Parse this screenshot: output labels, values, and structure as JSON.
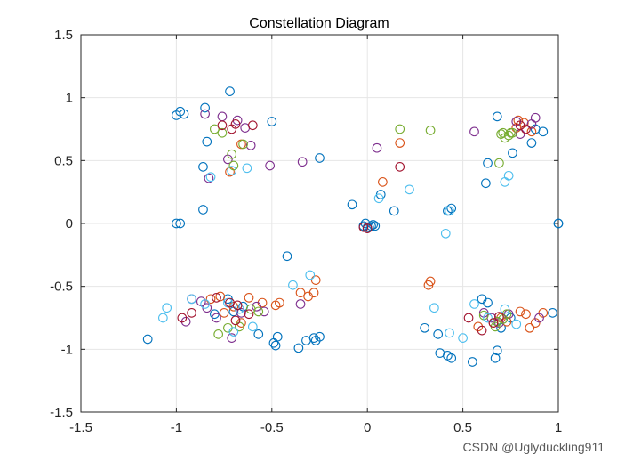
{
  "watermark": "CSDN @Uglyduckling911",
  "chart_data": {
    "type": "scatter",
    "title": "Constellation Diagram",
    "xlabel": "",
    "ylabel": "",
    "xlim": [
      -1.5,
      1
    ],
    "ylim": [
      -1.5,
      1.5
    ],
    "xticks": [
      -1.5,
      -1,
      -0.5,
      0,
      0.5,
      1
    ],
    "xtick_labels": [
      "-1.5",
      "-1",
      "-0.5",
      "0",
      "0.5",
      "1"
    ],
    "yticks": [
      -1.5,
      -1,
      -0.5,
      0,
      0.5,
      1,
      1.5
    ],
    "ytick_labels": [
      "-1.5",
      "-1",
      "-0.5",
      "0",
      "0.5",
      "1",
      "1.5"
    ],
    "grid": true,
    "marker": "open-circle",
    "series": [
      {
        "color": "#0072BD",
        "points": [
          [
            -0.98,
            0.0
          ],
          [
            -1.0,
            0.0
          ],
          [
            1.0,
            0.0
          ],
          [
            1.0,
            0.0
          ],
          [
            -1.0,
            0.86
          ],
          [
            -0.98,
            0.89
          ],
          [
            -0.96,
            0.87
          ],
          [
            -0.85,
            0.92
          ],
          [
            -0.72,
            1.05
          ],
          [
            -0.5,
            0.81
          ],
          [
            -0.84,
            0.65
          ],
          [
            -0.86,
            0.45
          ],
          [
            -0.86,
            0.11
          ],
          [
            -0.25,
            0.52
          ],
          [
            -0.08,
            0.15
          ],
          [
            0.14,
            0.1
          ],
          [
            0.07,
            0.23
          ],
          [
            0.42,
            0.1
          ],
          [
            0.44,
            0.12
          ],
          [
            -0.42,
            -0.26
          ],
          [
            -0.02,
            -0.02
          ],
          [
            0.0,
            -0.03
          ],
          [
            0.02,
            -0.02
          ],
          [
            0.03,
            -0.01
          ],
          [
            -0.01,
            0.0
          ],
          [
            0.04,
            -0.02
          ],
          [
            0.01,
            -0.03
          ],
          [
            -1.15,
            -0.92
          ],
          [
            -0.57,
            -0.88
          ],
          [
            -0.47,
            -0.9
          ],
          [
            -0.48,
            -0.97
          ],
          [
            -0.49,
            -0.95
          ],
          [
            -0.36,
            -0.99
          ],
          [
            -0.32,
            -0.93
          ],
          [
            -0.28,
            -0.91
          ],
          [
            -0.25,
            -0.9
          ],
          [
            -0.27,
            -0.93
          ],
          [
            0.3,
            -0.83
          ],
          [
            0.37,
            -0.88
          ],
          [
            0.38,
            -1.03
          ],
          [
            0.42,
            -1.05
          ],
          [
            0.44,
            -1.07
          ],
          [
            0.55,
            -1.1
          ],
          [
            0.67,
            -1.07
          ],
          [
            0.68,
            -1.01
          ],
          [
            0.6,
            -0.6
          ],
          [
            0.62,
            0.32
          ],
          [
            0.63,
            0.48
          ],
          [
            0.68,
            0.85
          ],
          [
            0.76,
            0.56
          ],
          [
            0.86,
            0.64
          ],
          [
            0.88,
            0.75
          ],
          [
            0.92,
            0.73
          ],
          [
            0.63,
            -0.63
          ],
          [
            0.68,
            -0.78
          ],
          [
            0.7,
            -0.83
          ],
          [
            0.75,
            -0.75
          ],
          [
            0.97,
            -0.71
          ],
          [
            -0.73,
            -0.6
          ],
          [
            -0.65,
            -0.66
          ],
          [
            -0.7,
            -0.7
          ],
          [
            -0.8,
            -0.72
          ]
        ]
      },
      {
        "color": "#D95319",
        "points": [
          [
            -0.72,
            0.41
          ],
          [
            -0.66,
            0.63
          ],
          [
            0.08,
            0.33
          ],
          [
            0.17,
            0.64
          ],
          [
            -0.82,
            -0.6
          ],
          [
            -0.77,
            -0.58
          ],
          [
            -0.75,
            -0.71
          ],
          [
            -0.7,
            -0.66
          ],
          [
            -0.66,
            -0.79
          ],
          [
            -0.62,
            -0.59
          ],
          [
            -0.55,
            -0.63
          ],
          [
            -0.48,
            -0.65
          ],
          [
            -0.46,
            -0.63
          ],
          [
            -0.35,
            -0.55
          ],
          [
            -0.31,
            -0.58
          ],
          [
            -0.28,
            -0.55
          ],
          [
            -0.27,
            -0.45
          ],
          [
            0.32,
            -0.49
          ],
          [
            0.33,
            -0.46
          ],
          [
            0.58,
            -0.82
          ],
          [
            0.66,
            -0.79
          ],
          [
            0.7,
            -0.75
          ],
          [
            0.73,
            -0.78
          ],
          [
            0.8,
            -0.7
          ],
          [
            0.83,
            -0.72
          ],
          [
            0.85,
            -0.83
          ],
          [
            0.88,
            -0.79
          ],
          [
            0.92,
            -0.71
          ],
          [
            0.78,
            0.76
          ],
          [
            0.79,
            0.82
          ],
          [
            0.82,
            0.8
          ],
          [
            0.86,
            0.73
          ]
        ]
      },
      {
        "color": "#7E2F8E",
        "points": [
          [
            -0.85,
            0.87
          ],
          [
            -0.76,
            0.85
          ],
          [
            -0.68,
            0.82
          ],
          [
            -0.64,
            0.76
          ],
          [
            -0.61,
            0.62
          ],
          [
            -0.73,
            0.51
          ],
          [
            -0.51,
            0.46
          ],
          [
            -0.83,
            0.36
          ],
          [
            -0.34,
            0.49
          ],
          [
            0.05,
            0.6
          ],
          [
            0.56,
            0.73
          ],
          [
            0.78,
            0.81
          ],
          [
            0.8,
            0.71
          ],
          [
            0.86,
            0.79
          ],
          [
            0.88,
            0.84
          ],
          [
            -0.92,
            -0.6
          ],
          [
            -0.95,
            -0.78
          ],
          [
            -0.87,
            -0.62
          ],
          [
            -0.84,
            -0.67
          ],
          [
            -0.79,
            -0.75
          ],
          [
            -0.71,
            -0.91
          ],
          [
            -0.66,
            -0.71
          ],
          [
            -0.58,
            -0.66
          ],
          [
            -0.54,
            -0.7
          ],
          [
            -0.35,
            -0.64
          ],
          [
            0.61,
            -0.71
          ],
          [
            0.65,
            -0.75
          ],
          [
            0.69,
            -0.79
          ],
          [
            0.74,
            -0.72
          ],
          [
            0.9,
            -0.75
          ]
        ]
      },
      {
        "color": "#77AC30",
        "points": [
          [
            -0.8,
            0.75
          ],
          [
            -0.76,
            0.72
          ],
          [
            -0.71,
            0.55
          ],
          [
            -0.65,
            0.63
          ],
          [
            -0.7,
            0.46
          ],
          [
            0.17,
            0.75
          ],
          [
            0.33,
            0.74
          ],
          [
            0.69,
            0.48
          ],
          [
            0.7,
            0.71
          ],
          [
            0.71,
            0.72
          ],
          [
            0.72,
            0.68
          ],
          [
            0.74,
            0.7
          ],
          [
            0.75,
            0.72
          ],
          [
            0.76,
            0.72
          ],
          [
            -0.78,
            -0.88
          ],
          [
            -0.73,
            -0.83
          ],
          [
            -0.67,
            -0.82
          ],
          [
            -0.61,
            -0.68
          ],
          [
            -0.57,
            -0.7
          ],
          [
            0.61,
            -0.73
          ],
          [
            0.67,
            -0.82
          ],
          [
            0.71,
            -0.76
          ],
          [
            0.73,
            -0.72
          ],
          [
            0.68,
            -0.78
          ]
        ]
      },
      {
        "color": "#4DBEEE",
        "points": [
          [
            -0.82,
            0.37
          ],
          [
            -0.71,
            0.42
          ],
          [
            -0.63,
            0.44
          ],
          [
            0.22,
            0.27
          ],
          [
            0.41,
            -0.08
          ],
          [
            0.43,
            0.1
          ],
          [
            0.72,
            0.33
          ],
          [
            0.74,
            0.38
          ],
          [
            0.06,
            0.2
          ],
          [
            -0.85,
            -0.64
          ],
          [
            -0.92,
            -0.6
          ],
          [
            -0.73,
            -0.63
          ],
          [
            -0.67,
            -0.68
          ],
          [
            -1.05,
            -0.67
          ],
          [
            -1.07,
            -0.75
          ],
          [
            -0.7,
            -0.86
          ],
          [
            -0.6,
            -0.82
          ],
          [
            -0.39,
            -0.49
          ],
          [
            -0.3,
            -0.41
          ],
          [
            0.35,
            -0.67
          ],
          [
            0.43,
            -0.87
          ],
          [
            0.5,
            -0.91
          ],
          [
            0.56,
            -0.64
          ],
          [
            0.63,
            -0.75
          ],
          [
            0.72,
            -0.68
          ],
          [
            0.78,
            -0.8
          ]
        ]
      },
      {
        "color": "#A2142F",
        "points": [
          [
            -0.76,
            0.78
          ],
          [
            -0.71,
            0.75
          ],
          [
            -0.69,
            0.79
          ],
          [
            -0.6,
            0.78
          ],
          [
            0.17,
            0.45
          ],
          [
            -0.02,
            -0.03
          ],
          [
            0.0,
            -0.04
          ],
          [
            -0.97,
            -0.75
          ],
          [
            -0.92,
            -0.71
          ],
          [
            -0.79,
            -0.59
          ],
          [
            -0.72,
            -0.63
          ],
          [
            -0.68,
            -0.65
          ],
          [
            -0.62,
            -0.72
          ],
          [
            -0.69,
            -0.77
          ],
          [
            0.53,
            -0.75
          ],
          [
            0.6,
            -0.85
          ],
          [
            0.66,
            -0.79
          ],
          [
            0.69,
            -0.74
          ],
          [
            0.8,
            0.78
          ],
          [
            0.83,
            0.75
          ]
        ]
      }
    ]
  }
}
